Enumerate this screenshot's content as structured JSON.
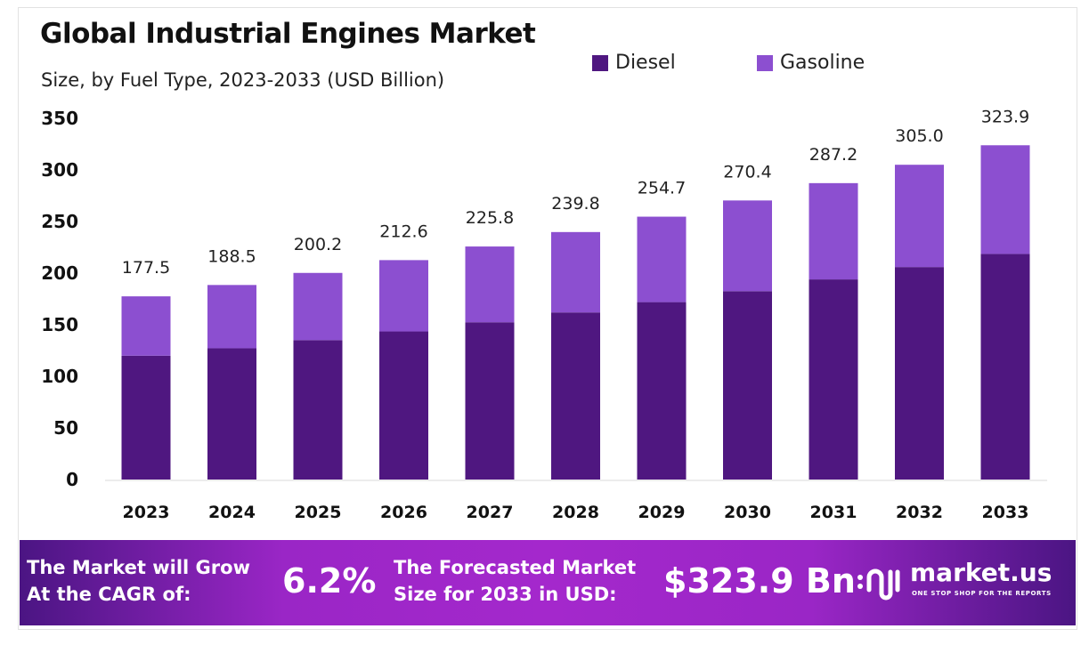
{
  "chart_data": {
    "type": "bar",
    "stacked": true,
    "title": "Global Industrial Engines Market",
    "subtitle": "Size, by Fuel Type, 2023-2033 (USD Billion)",
    "categories": [
      "2023",
      "2024",
      "2025",
      "2026",
      "2027",
      "2028",
      "2029",
      "2030",
      "2031",
      "2032",
      "2033"
    ],
    "series": [
      {
        "name": "Diesel",
        "color": "#4f1780",
        "values": [
          120.0,
          127.2,
          135.1,
          143.5,
          152.4,
          161.9,
          171.9,
          182.5,
          193.9,
          205.9,
          218.6
        ]
      },
      {
        "name": "Gasoline",
        "color": "#8c4fd0",
        "values": [
          57.5,
          61.3,
          65.1,
          69.1,
          73.4,
          77.9,
          82.8,
          87.9,
          93.3,
          99.1,
          105.3
        ]
      }
    ],
    "totals_labels": [
      "177.5",
      "188.5",
      "200.2",
      "212.6",
      "225.8",
      "239.8",
      "254.7",
      "270.4",
      "287.2",
      "305.0",
      "323.9"
    ],
    "yticks": [
      "0",
      "50",
      "100",
      "150",
      "200",
      "250",
      "300",
      "350"
    ],
    "ylim": [
      0,
      350
    ],
    "xlabel": "",
    "ylabel": "",
    "grid": false,
    "legend_position": "top-right"
  },
  "footer": {
    "cagr_text_1": "The Market will Grow",
    "cagr_text_2": "At the CAGR of:",
    "cagr_value": "6.2%",
    "forecast_text_1": "The Forecasted Market",
    "forecast_text_2": "Size for 2033 in USD:",
    "forecast_value": "$323.9 Bn",
    "brand": "market.us",
    "tagline": "ONE STOP SHOP FOR THE REPORTS"
  }
}
